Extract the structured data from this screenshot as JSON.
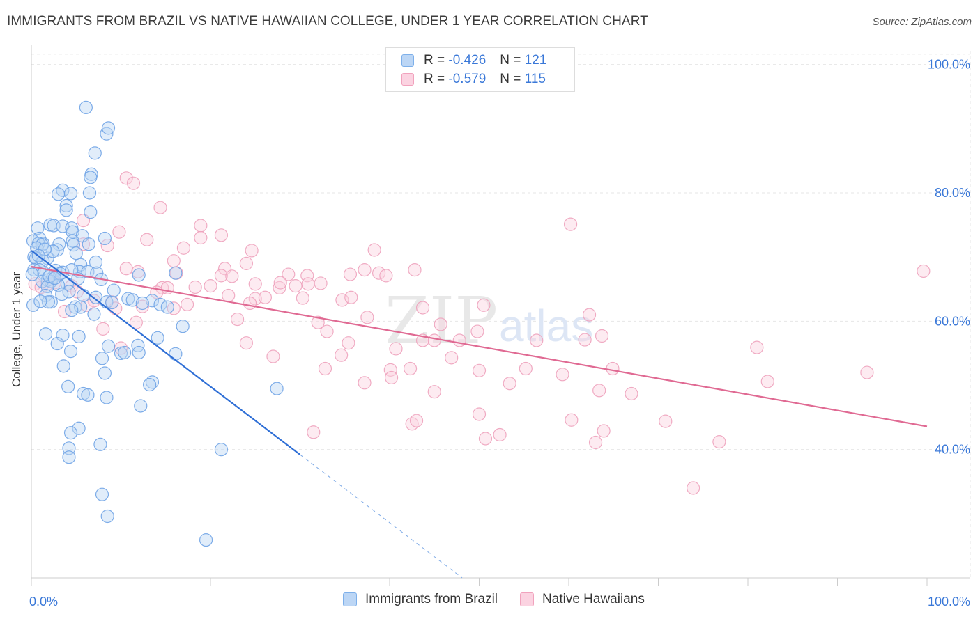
{
  "title": "IMMIGRANTS FROM BRAZIL VS NATIVE HAWAIIAN COLLEGE, UNDER 1 YEAR CORRELATION CHART",
  "source": "Source: ZipAtlas.com",
  "watermark": {
    "zip": "ZIP",
    "atlas": "atlas"
  },
  "legend": {
    "r_label": "R =",
    "n_label": "N =",
    "rows": [
      {
        "r": "-0.426",
        "n": "121",
        "color": "#7eb0ea"
      },
      {
        "r": "-0.579",
        "n": "115",
        "color": "#f1a2bd"
      }
    ]
  },
  "chart_data": {
    "type": "scatter",
    "title": "IMMIGRANTS FROM BRAZIL VS NATIVE HAWAIIAN COLLEGE, UNDER 1 YEAR CORRELATION CHART",
    "xlabel": "",
    "ylabel": "College, Under 1 year",
    "xlim": [
      0,
      100
    ],
    "ylim": [
      20,
      103
    ],
    "x_tick_labels": [
      "0.0%",
      "100.0%"
    ],
    "y_tick_labels": [
      "40.0%",
      "60.0%",
      "80.0%",
      "100.0%"
    ],
    "y_ticks": [
      40,
      60,
      80,
      100
    ],
    "grid": true,
    "legend_position": "top-center",
    "series": [
      {
        "name": "Immigrants from Brazil",
        "color": "#6fa3e6",
        "line_color": "#2f6fd6",
        "trend": {
          "x1": 0,
          "y1": 71,
          "x2": 30,
          "y2": 39.2,
          "dash_to_x": 48.1,
          "dash_to_y": 20
        },
        "points": [
          [
            6.1,
            93.3
          ],
          [
            8.4,
            89.2
          ],
          [
            8.6,
            90.1
          ],
          [
            7.1,
            86.2
          ],
          [
            6.7,
            82.9
          ],
          [
            6.6,
            82.4
          ],
          [
            3.5,
            80.4
          ],
          [
            4.4,
            79.9
          ],
          [
            6.5,
            80.0
          ],
          [
            3.0,
            79.8
          ],
          [
            3.9,
            78.0
          ],
          [
            3.9,
            77.3
          ],
          [
            6.6,
            77.0
          ],
          [
            2.1,
            75.0
          ],
          [
            2.5,
            74.9
          ],
          [
            3.5,
            74.8
          ],
          [
            0.7,
            74.5
          ],
          [
            4.5,
            74.5
          ],
          [
            4.6,
            73.9
          ],
          [
            5.7,
            73.3
          ],
          [
            0.9,
            72.9
          ],
          [
            0.2,
            72.5
          ],
          [
            1.3,
            72.1
          ],
          [
            4.6,
            72.5
          ],
          [
            8.2,
            72.9
          ],
          [
            0.8,
            72.1
          ],
          [
            1.2,
            71.9
          ],
          [
            3.1,
            72.0
          ],
          [
            6.4,
            72.0
          ],
          [
            4.7,
            71.9
          ],
          [
            0.6,
            71.4
          ],
          [
            2.9,
            71.1
          ],
          [
            5.0,
            70.6
          ],
          [
            0.3,
            70.0
          ],
          [
            1.8,
            69.8
          ],
          [
            2.4,
            70.9
          ],
          [
            0.5,
            69.8
          ],
          [
            7.2,
            69.2
          ],
          [
            1.3,
            69.4
          ],
          [
            5.5,
            68.8
          ],
          [
            0.3,
            68.0
          ],
          [
            0.9,
            68.0
          ],
          [
            1.4,
            67.5
          ],
          [
            2.7,
            67.9
          ],
          [
            5.4,
            67.7
          ],
          [
            6.3,
            67.7
          ],
          [
            3.5,
            67.6
          ],
          [
            7.3,
            67.5
          ],
          [
            12.0,
            67.2
          ],
          [
            16.1,
            67.5
          ],
          [
            0.1,
            67.3
          ],
          [
            2.4,
            66.8
          ],
          [
            1.8,
            66.4
          ],
          [
            2.2,
            66.2
          ],
          [
            1.2,
            66.2
          ],
          [
            7.8,
            66.5
          ],
          [
            5.2,
            66.6
          ],
          [
            4.0,
            65.8
          ],
          [
            3.0,
            65.6
          ],
          [
            1.8,
            65.4
          ],
          [
            4.2,
            64.6
          ],
          [
            1.6,
            64.0
          ],
          [
            3.4,
            64.2
          ],
          [
            5.8,
            64.0
          ],
          [
            7.2,
            63.7
          ],
          [
            10.8,
            63.5
          ],
          [
            11.3,
            63.3
          ],
          [
            13.5,
            63.2
          ],
          [
            2.2,
            63.0
          ],
          [
            1.9,
            63.0
          ],
          [
            8.4,
            63.0
          ],
          [
            9.0,
            62.9
          ],
          [
            12.4,
            62.8
          ],
          [
            14.4,
            62.6
          ],
          [
            0.2,
            62.5
          ],
          [
            4.9,
            62.2
          ],
          [
            5.5,
            62.2
          ],
          [
            15.2,
            62.2
          ],
          [
            7.0,
            61.1
          ],
          [
            4.5,
            61.7
          ],
          [
            16.9,
            59.2
          ],
          [
            1.6,
            58.0
          ],
          [
            5.3,
            57.6
          ],
          [
            3.5,
            57.8
          ],
          [
            14.1,
            57.4
          ],
          [
            2.9,
            56.5
          ],
          [
            8.6,
            56.1
          ],
          [
            11.9,
            56.2
          ],
          [
            10.0,
            55.0
          ],
          [
            10.4,
            55.1
          ],
          [
            12.0,
            55.1
          ],
          [
            4.4,
            55.3
          ],
          [
            16.1,
            54.9
          ],
          [
            7.9,
            54.2
          ],
          [
            3.6,
            53.0
          ],
          [
            8.2,
            51.9
          ],
          [
            13.5,
            50.5
          ],
          [
            13.2,
            50.1
          ],
          [
            4.1,
            49.8
          ],
          [
            27.4,
            49.5
          ],
          [
            5.8,
            48.7
          ],
          [
            6.3,
            48.5
          ],
          [
            8.4,
            48.1
          ],
          [
            12.2,
            46.8
          ],
          [
            5.3,
            43.3
          ],
          [
            4.4,
            42.6
          ],
          [
            7.7,
            40.8
          ],
          [
            4.2,
            40.2
          ],
          [
            21.2,
            40.0
          ],
          [
            4.2,
            38.8
          ],
          [
            7.9,
            33.0
          ],
          [
            8.5,
            29.6
          ],
          [
            19.5,
            25.9
          ],
          [
            4.5,
            68.0
          ],
          [
            2.0,
            67.0
          ],
          [
            1.5,
            71.2
          ],
          [
            0.8,
            70.2
          ],
          [
            3.2,
            67.4
          ],
          [
            2.6,
            66.7
          ],
          [
            9.2,
            64.8
          ],
          [
            1.0,
            63.1
          ]
        ]
      },
      {
        "name": "Native Hawaiians",
        "color": "#f1a2bd",
        "line_color": "#e06a93",
        "trend": {
          "x1": 0,
          "y1": 68.5,
          "x2": 100,
          "y2": 43.6
        },
        "points": [
          [
            10.6,
            82.3
          ],
          [
            11.4,
            81.5
          ],
          [
            14.4,
            77.7
          ],
          [
            5.8,
            75.7
          ],
          [
            18.9,
            74.9
          ],
          [
            60.2,
            75.1
          ],
          [
            9.8,
            73.9
          ],
          [
            21.2,
            73.4
          ],
          [
            12.9,
            72.7
          ],
          [
            18.9,
            73.0
          ],
          [
            5.8,
            72.0
          ],
          [
            8.5,
            71.8
          ],
          [
            17.0,
            71.4
          ],
          [
            24.6,
            71.0
          ],
          [
            38.3,
            71.1
          ],
          [
            15.9,
            69.4
          ],
          [
            24.0,
            69.0
          ],
          [
            37.2,
            68.0
          ],
          [
            38.8,
            67.5
          ],
          [
            42.8,
            68.0
          ],
          [
            99.6,
            67.8
          ],
          [
            10.6,
            68.2
          ],
          [
            21.6,
            68.2
          ],
          [
            11.9,
            67.7
          ],
          [
            16.2,
            67.5
          ],
          [
            21.2,
            67.1
          ],
          [
            22.4,
            67.0
          ],
          [
            28.7,
            67.3
          ],
          [
            30.8,
            67.1
          ],
          [
            35.6,
            67.3
          ],
          [
            39.6,
            67.1
          ],
          [
            4.5,
            65.5
          ],
          [
            2.6,
            66.0
          ],
          [
            0.4,
            65.8
          ],
          [
            18.3,
            65.3
          ],
          [
            20.0,
            65.5
          ],
          [
            25.0,
            65.8
          ],
          [
            29.5,
            65.5
          ],
          [
            30.9,
            65.8
          ],
          [
            32.3,
            65.9
          ],
          [
            14.6,
            65.2
          ],
          [
            15.2,
            65.2
          ],
          [
            27.7,
            65.2
          ],
          [
            5.1,
            64.6
          ],
          [
            14.0,
            64.5
          ],
          [
            1.8,
            65.8
          ],
          [
            25.0,
            63.5
          ],
          [
            26.1,
            63.7
          ],
          [
            30.3,
            63.6
          ],
          [
            34.7,
            63.3
          ],
          [
            35.7,
            63.7
          ],
          [
            17.4,
            62.6
          ],
          [
            12.4,
            62.3
          ],
          [
            15.9,
            62.0
          ],
          [
            24.4,
            62.8
          ],
          [
            43.7,
            62.1
          ],
          [
            50.5,
            62.5
          ],
          [
            62.3,
            61.0
          ],
          [
            23.0,
            60.3
          ],
          [
            37.5,
            60.6
          ],
          [
            11.7,
            59.8
          ],
          [
            32.0,
            59.8
          ],
          [
            45.7,
            59.5
          ],
          [
            8.0,
            58.8
          ],
          [
            49.8,
            58.4
          ],
          [
            63.7,
            57.7
          ],
          [
            33.0,
            58.4
          ],
          [
            43.7,
            57.0
          ],
          [
            45.0,
            57.0
          ],
          [
            47.8,
            57.0
          ],
          [
            56.4,
            57.0
          ],
          [
            61.8,
            57.1
          ],
          [
            24.0,
            56.6
          ],
          [
            35.4,
            56.6
          ],
          [
            40.7,
            55.7
          ],
          [
            81.0,
            55.9
          ],
          [
            10.0,
            55.8
          ],
          [
            27.0,
            54.5
          ],
          [
            34.6,
            54.7
          ],
          [
            46.9,
            54.3
          ],
          [
            32.8,
            52.6
          ],
          [
            40.1,
            52.4
          ],
          [
            42.3,
            52.6
          ],
          [
            50.0,
            52.3
          ],
          [
            55.2,
            52.6
          ],
          [
            64.9,
            52.6
          ],
          [
            40.2,
            51.2
          ],
          [
            59.3,
            51.7
          ],
          [
            53.4,
            50.3
          ],
          [
            37.2,
            50.4
          ],
          [
            45.0,
            49.0
          ],
          [
            63.4,
            49.2
          ],
          [
            67.0,
            48.7
          ],
          [
            82.2,
            50.6
          ],
          [
            93.3,
            52.0
          ],
          [
            42.5,
            44.0
          ],
          [
            43.0,
            44.5
          ],
          [
            50.0,
            45.5
          ],
          [
            60.3,
            44.6
          ],
          [
            70.8,
            44.4
          ],
          [
            31.5,
            42.7
          ],
          [
            50.7,
            41.7
          ],
          [
            52.3,
            42.3
          ],
          [
            63.9,
            42.9
          ],
          [
            63.0,
            41.1
          ],
          [
            76.8,
            41.2
          ],
          [
            73.9,
            34.0
          ],
          [
            9.0,
            63.0
          ],
          [
            7.0,
            63.2
          ],
          [
            6.2,
            62.5
          ],
          [
            22.0,
            64.0
          ],
          [
            27.8,
            66.0
          ],
          [
            9.4,
            62.0
          ],
          [
            3.7,
            61.5
          ],
          [
            1.1,
            65.3
          ]
        ]
      }
    ]
  },
  "bottom_legend": [
    "Immigrants from Brazil",
    "Native Hawaiians"
  ]
}
